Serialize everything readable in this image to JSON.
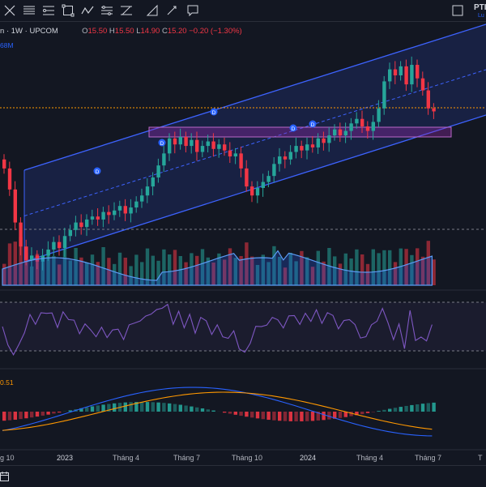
{
  "toolbar": {
    "tools": [
      "cross-lines-tool-icon",
      "horizontal-lines-tool-icon",
      "path-tool-icon",
      "rectangle-tool-icon",
      "polyline-tool-icon",
      "pitchfork-tool-icon",
      "angle-tool-icon",
      "brush-tool-icon",
      "comment-tool-icon"
    ],
    "right_tool": "chart-type-icon"
  },
  "ticker": {
    "symbol": "PTI",
    "sub": "Lu"
  },
  "legend": {
    "name_fragment": "n",
    "interval": "1W",
    "exchange": "UPCOM",
    "open_label": "O",
    "open": "15.50",
    "high_label": "H",
    "high": "15.50",
    "low_label": "L",
    "low": "14.90",
    "close_label": "C",
    "close": "15.20",
    "change": "−0.20 (−1.30%)",
    "separator": "·"
  },
  "volume_label": "68M",
  "macd_label": "0.51",
  "x_axis": [
    "g 10",
    "2023",
    "Tháng 4",
    "Tháng 7",
    "Tháng 10",
    "2024",
    "Tháng 4",
    "Tháng 7",
    "T"
  ],
  "colors": {
    "up": "#26a69a",
    "down": "#f23645",
    "channel": "#3d63ff",
    "channel_fill": "#1e2a5e",
    "orange": "#ff9800",
    "rsi": "#7e57c2",
    "dividend": "#2962ff"
  },
  "chart_data": {
    "type": "candlestick",
    "series": [
      {
        "name": "1W",
        "close": [
          11.4,
          10.0,
          7.8,
          6.2,
          5.3,
          5.6,
          5.2,
          5.6,
          6.0,
          6.5,
          6.1,
          6.9,
          7.3,
          7.8,
          7.5,
          8.0,
          8.2,
          8.0,
          8.5,
          8.3,
          8.6,
          8.9,
          8.4,
          8.8,
          9.2,
          9.6,
          10.2,
          10.8,
          11.6,
          12.4,
          13.4,
          13.0,
          13.5,
          12.9,
          13.3,
          12.5,
          12.9,
          13.2,
          12.7,
          13.0,
          12.6,
          12.2,
          12.4,
          11.4,
          10.2,
          9.6,
          10.1,
          10.5,
          10.9,
          11.7,
          12.2,
          12.0,
          12.5,
          12.9,
          12.6,
          13.0,
          12.8,
          13.4,
          13.1,
          13.6,
          14.0,
          13.6,
          13.9,
          14.4,
          14.7,
          14.2,
          13.9,
          14.5,
          15.4,
          17.2,
          18.0,
          17.6,
          18.2,
          17.0,
          18.3,
          17.4,
          16.6,
          15.4,
          15.2
        ]
      }
    ],
    "ylabel": "",
    "xlabel": ""
  }
}
